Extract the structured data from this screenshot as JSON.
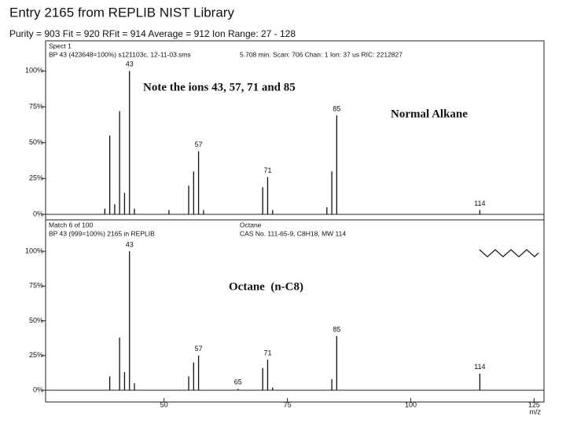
{
  "header": {
    "title": "Entry 2165 from REPLIB NIST Library",
    "subtitle": "Purity = 903  Fit = 920  RFit = 914  Average = 912  Ion Range: 27 - 128"
  },
  "chart_data": [
    {
      "type": "bar",
      "info": [
        "Spect 1",
        "BP 43 (423648=100%) s121103c,  12-11-03.sms",
        "5.708 min. Scan: 706  Chan: 1  Ion: 37 us  RIC: 2212827"
      ],
      "annotations": [
        "Note the ions 43, 57, 71 and 85",
        "Normal Alkane"
      ],
      "x": [
        38,
        39,
        40,
        41,
        42,
        43,
        44,
        51,
        55,
        56,
        57,
        58,
        70,
        71,
        72,
        83,
        84,
        85,
        114
      ],
      "values": [
        4,
        55,
        7,
        72,
        15,
        100,
        4,
        3,
        20,
        30,
        44,
        3,
        19,
        26,
        3,
        5,
        30,
        69,
        3
      ],
      "labeled_peaks": [
        43,
        57,
        71,
        85,
        114
      ],
      "color": "#111111",
      "xlim": [
        26,
        127
      ],
      "ylim": [
        0,
        121
      ],
      "yticks": [
        {
          "value": 0,
          "label": "0%"
        },
        {
          "value": 25,
          "label": "25%"
        },
        {
          "value": 50,
          "label": "50%"
        },
        {
          "value": 75,
          "label": "75%"
        },
        {
          "value": 100,
          "label": "100%"
        }
      ]
    },
    {
      "type": "bar",
      "info": [
        "Match 6 of 100",
        "BP 43 (999=100%) 2165 in REPLIB",
        "Octane",
        "CAS No. 111-65-9, C8H18, MW 114"
      ],
      "annotations": [
        "Octane  (n-C8)"
      ],
      "x": [
        39,
        41,
        42,
        43,
        44,
        55,
        56,
        57,
        65,
        70,
        71,
        72,
        84,
        85,
        114
      ],
      "values": [
        10,
        38,
        13,
        100,
        5,
        10,
        20,
        25,
        1,
        16,
        22,
        2,
        8,
        39,
        12
      ],
      "labeled_peaks": [
        43,
        57,
        65,
        71,
        85,
        114
      ],
      "color": "#111111",
      "xlim": [
        26,
        127
      ],
      "ylim": [
        0,
        121
      ],
      "yticks": [
        {
          "value": 0,
          "label": "0%"
        },
        {
          "value": 25,
          "label": "25%"
        },
        {
          "value": 50,
          "label": "50%"
        },
        {
          "value": 75,
          "label": "75%"
        },
        {
          "value": 100,
          "label": "100%"
        }
      ],
      "xticks": [
        50,
        75,
        100,
        125
      ],
      "xlabel": "m/z"
    }
  ]
}
